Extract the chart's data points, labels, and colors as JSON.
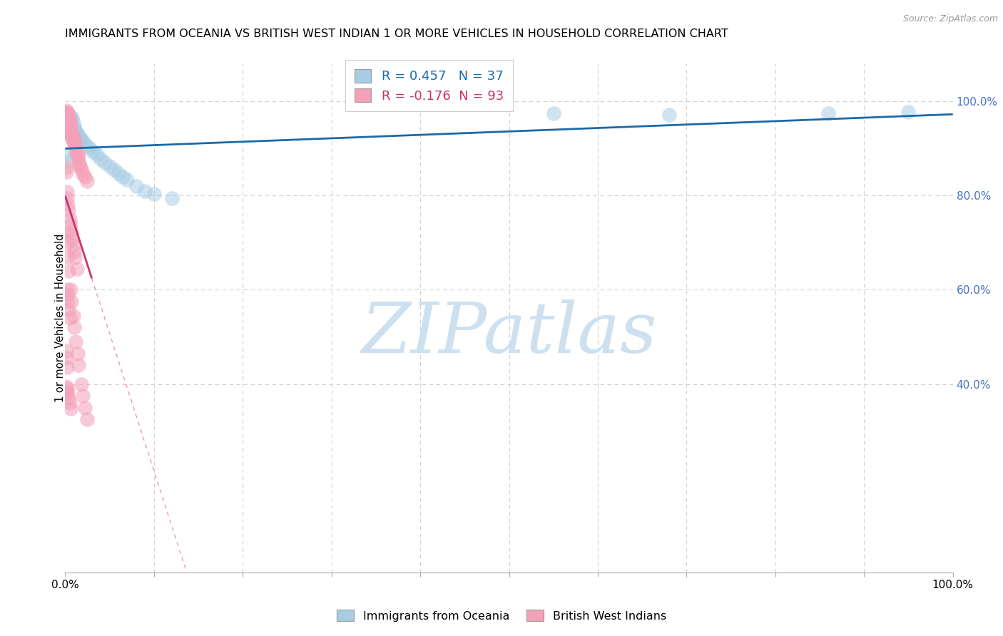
{
  "title": "IMMIGRANTS FROM OCEANIA VS BRITISH WEST INDIAN 1 OR MORE VEHICLES IN HOUSEHOLD CORRELATION CHART",
  "source": "Source: ZipAtlas.com",
  "ylabel": "1 or more Vehicles in Household",
  "xlim": [
    0,
    1.0
  ],
  "ylim": [
    0.0,
    1.08
  ],
  "xtick_vals": [
    0.0,
    0.1,
    0.2,
    0.3,
    0.4,
    0.5,
    0.6,
    0.7,
    0.8,
    0.9,
    1.0
  ],
  "xtick_labels_show": {
    "0.0": "0.0%",
    "1.0": "100.0%"
  },
  "ytick_right_vals": [
    1.0,
    0.8,
    0.6,
    0.4
  ],
  "ytick_right_labels": [
    "100.0%",
    "80.0%",
    "60.0%",
    "40.0%"
  ],
  "R1": 0.457,
  "N1": 37,
  "R2": -0.176,
  "N2": 93,
  "color_oceania": "#a8cce4",
  "color_bwi": "#f4a0b8",
  "color_line1": "#1a6aaa",
  "color_line2": "#cc3366",
  "legend_label1": "Immigrants from Oceania",
  "legend_label2": "British West Indians",
  "oceania_x": [
    0.002,
    0.003,
    0.004,
    0.005,
    0.006,
    0.007,
    0.008,
    0.009,
    0.01,
    0.011,
    0.012,
    0.014,
    0.016,
    0.018,
    0.02,
    0.022,
    0.025,
    0.028,
    0.032,
    0.036,
    0.04,
    0.045,
    0.05,
    0.055,
    0.06,
    0.065,
    0.07,
    0.08,
    0.09,
    0.1,
    0.12,
    0.003,
    0.005,
    0.55,
    0.68,
    0.86,
    0.95
  ],
  "oceania_y": [
    0.975,
    0.965,
    0.96,
    0.97,
    0.955,
    0.96,
    0.965,
    0.955,
    0.945,
    0.94,
    0.935,
    0.93,
    0.925,
    0.92,
    0.915,
    0.91,
    0.905,
    0.9,
    0.893,
    0.886,
    0.878,
    0.87,
    0.862,
    0.855,
    0.847,
    0.84,
    0.833,
    0.82,
    0.81,
    0.803,
    0.795,
    0.888,
    0.875,
    0.975,
    0.972,
    0.975,
    0.978
  ],
  "bwi_x": [
    0.001,
    0.001,
    0.001,
    0.002,
    0.002,
    0.002,
    0.003,
    0.003,
    0.003,
    0.004,
    0.004,
    0.004,
    0.005,
    0.005,
    0.005,
    0.006,
    0.006,
    0.007,
    0.007,
    0.008,
    0.008,
    0.009,
    0.009,
    0.01,
    0.01,
    0.011,
    0.012,
    0.012,
    0.013,
    0.014,
    0.015,
    0.015,
    0.016,
    0.017,
    0.018,
    0.02,
    0.022,
    0.025,
    0.001,
    0.001,
    0.002,
    0.002,
    0.003,
    0.003,
    0.004,
    0.004,
    0.005,
    0.005,
    0.001,
    0.001,
    0.002,
    0.002,
    0.003,
    0.004,
    0.005,
    0.006,
    0.007,
    0.008,
    0.009,
    0.01,
    0.011,
    0.013,
    0.002,
    0.003,
    0.003,
    0.004,
    0.005,
    0.001,
    0.002,
    0.003,
    0.004,
    0.006,
    0.007,
    0.009,
    0.01,
    0.012,
    0.014,
    0.015,
    0.018,
    0.02,
    0.022,
    0.025,
    0.001,
    0.001,
    0.002,
    0.003,
    0.004,
    0.005,
    0.006,
    0.001,
    0.001,
    0.002
  ],
  "bwi_y": [
    0.975,
    0.965,
    0.955,
    0.97,
    0.96,
    0.95,
    0.965,
    0.955,
    0.945,
    0.96,
    0.95,
    0.94,
    0.95,
    0.94,
    0.93,
    0.94,
    0.93,
    0.935,
    0.925,
    0.93,
    0.92,
    0.925,
    0.915,
    0.92,
    0.91,
    0.91,
    0.905,
    0.895,
    0.89,
    0.885,
    0.88,
    0.87,
    0.865,
    0.86,
    0.855,
    0.845,
    0.84,
    0.83,
    0.98,
    0.975,
    0.978,
    0.968,
    0.973,
    0.963,
    0.968,
    0.958,
    0.958,
    0.948,
    0.86,
    0.85,
    0.808,
    0.795,
    0.78,
    0.768,
    0.75,
    0.738,
    0.722,
    0.708,
    0.695,
    0.68,
    0.668,
    0.645,
    0.6,
    0.59,
    0.575,
    0.558,
    0.54,
    0.72,
    0.7,
    0.67,
    0.64,
    0.6,
    0.575,
    0.545,
    0.52,
    0.49,
    0.465,
    0.44,
    0.4,
    0.375,
    0.35,
    0.325,
    0.395,
    0.38,
    0.39,
    0.382,
    0.37,
    0.36,
    0.348,
    0.47,
    0.455,
    0.435
  ]
}
